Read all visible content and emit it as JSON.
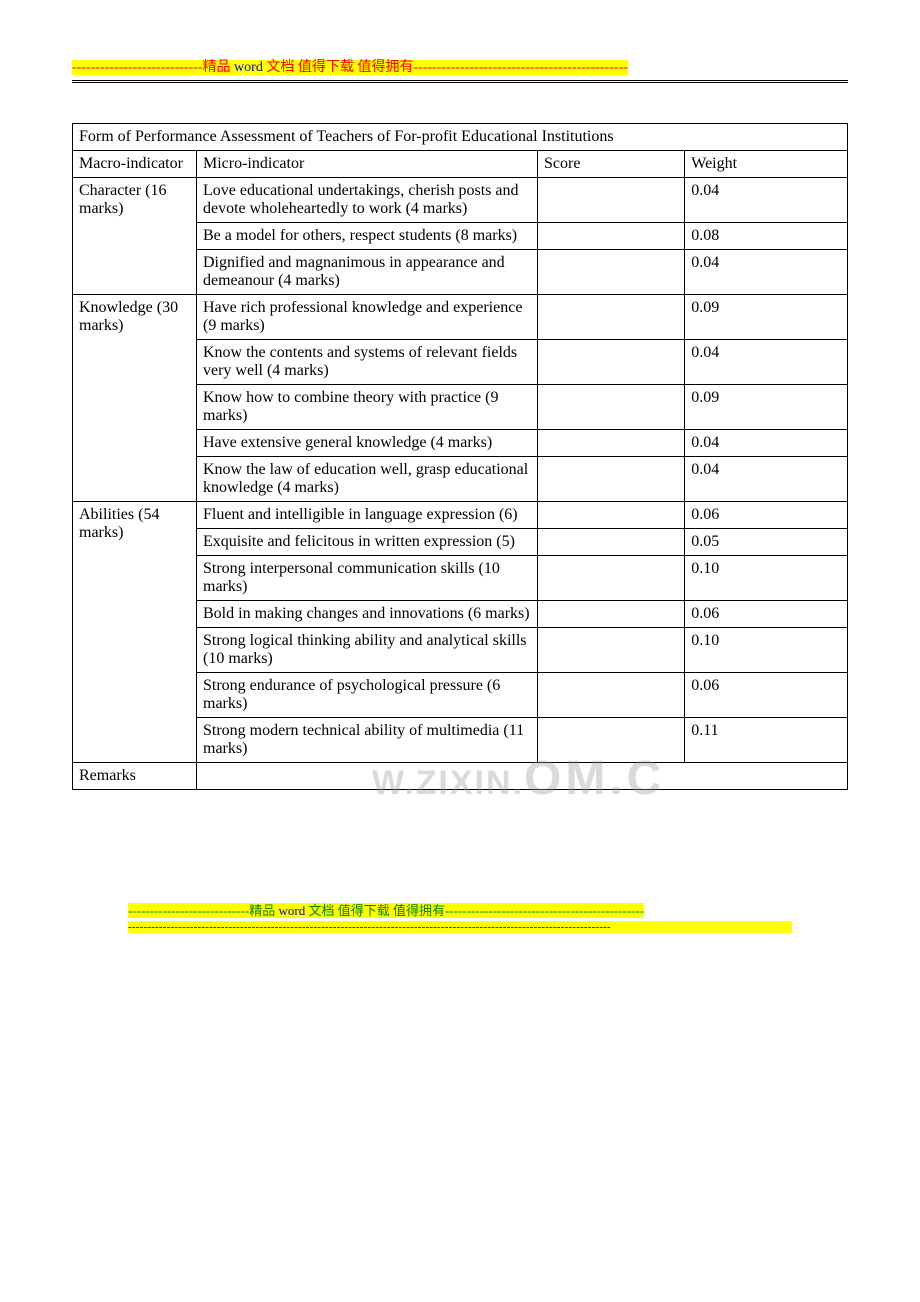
{
  "banner": {
    "top_dashes_left": "----------------------------",
    "top_zh_1": "精品",
    "top_word": " word ",
    "top_zh_2": "文档  值得下载  值得拥有",
    "top_dashes_right": "----------------------------------------------"
  },
  "table": {
    "title": "Form of Performance Assessment of Teachers of For-profit Educational Institutions",
    "headers": {
      "macro": "Macro-indicator",
      "micro": "Micro-indicator",
      "score": "Score",
      "weight": "Weight"
    },
    "groups": [
      {
        "macro": "Character (16 marks)",
        "rows": [
          {
            "micro": "Love educational undertakings, cherish posts and devote wholeheartedly to work (4 marks)",
            "score": "",
            "weight": "0.04"
          },
          {
            "micro": "Be a model for others, respect students (8 marks)",
            "score": "",
            "weight": "0.08"
          },
          {
            "micro": "Dignified and magnanimous in appearance and demeanour (4 marks)",
            "score": "",
            "weight": "0.04"
          }
        ]
      },
      {
        "macro": "Knowledge (30 marks)",
        "rows": [
          {
            "micro": "Have rich professional knowledge and experience (9 marks)",
            "score": "",
            "weight": "0.09"
          },
          {
            "micro": "Know the contents and systems of relevant fields very well (4 marks)",
            "score": "",
            "weight": "0.04"
          },
          {
            "micro": "Know how to combine theory with practice (9 marks)",
            "score": "",
            "weight": "0.09"
          },
          {
            "micro": "Have extensive general knowledge (4 marks)",
            "score": "",
            "weight": "0.04"
          },
          {
            "micro": "Know the law of education well, grasp educational knowledge (4 marks)",
            "score": "",
            "weight": "0.04"
          }
        ]
      },
      {
        "macro": "Abilities (54 marks)",
        "rows": [
          {
            "micro": "Fluent and intelligible in language expression (6)",
            "score": "",
            "weight": "0.06"
          },
          {
            "micro": "Exquisite and felicitous in written expression (5)",
            "score": "",
            "weight": "0.05"
          },
          {
            "micro": "Strong interpersonal communication skills (10 marks)",
            "score": "",
            "weight": "0.10"
          },
          {
            "micro": "Bold in making changes and innovations (6 marks)",
            "score": "",
            "weight": "0.06"
          },
          {
            "micro": "Strong logical thinking ability and analytical skills (10 marks)",
            "score": "",
            "weight": "0.10"
          },
          {
            "micro": "Strong endurance of psychological pressure (6 marks)",
            "score": "",
            "weight": "0.06"
          },
          {
            "micro": "Strong modern technical ability of multimedia (11 marks)",
            "score": "",
            "weight": "0.11"
          }
        ]
      }
    ],
    "remarks_label": "Remarks",
    "remarks_value": ""
  },
  "watermark": {
    "big": "OM.C",
    "small": "W.ZIXIN."
  },
  "footer": {
    "l1_dashes_left": "----------------------------",
    "l1_zh_1": "精品",
    "l1_word": " word ",
    "l1_zh_2": "文档  值得下载  值得拥有",
    "l1_dashes_right": "----------------------------------------------",
    "l2": "-----------------------------------------------------------------------------------------------------------------------------"
  },
  "style": {
    "colors": {
      "text": "#000000",
      "red": "#ff0000",
      "blue": "#0000c0",
      "green": "#008000",
      "navy": "#000080",
      "highlight": "#ffff00",
      "watermark": "rgba(150,150,150,0.35)",
      "border": "#000000",
      "background": "#ffffff"
    },
    "font_family": "Times New Roman",
    "font_size_body": 16,
    "font_size_banner": 14,
    "col_widths_pct": [
      16,
      44,
      19,
      21
    ]
  }
}
